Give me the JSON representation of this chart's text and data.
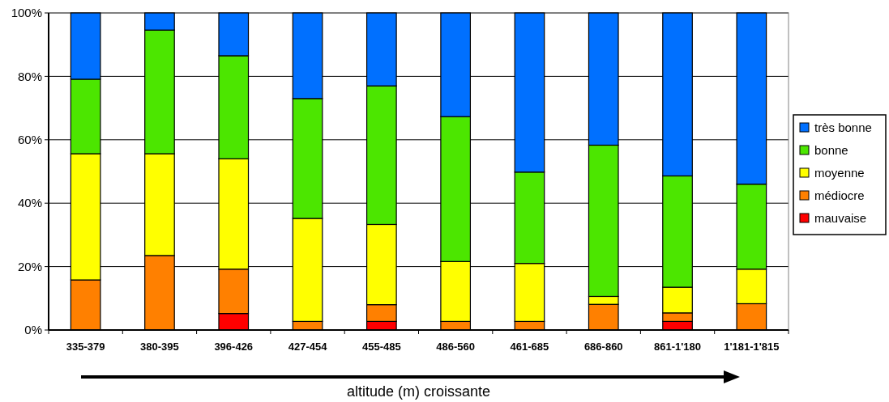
{
  "chart_data": {
    "type": "bar",
    "stacked": true,
    "xlabel": "altitude (m) croissante",
    "categories": [
      "335-379",
      "380-395",
      "396-426",
      "427-454",
      "455-485",
      "486-560",
      "461-685",
      "686-860",
      "861-1'180",
      "1'181-1'815"
    ],
    "series": [
      {
        "name": "mauvaise",
        "color": "#ff0000",
        "values": [
          0,
          0,
          5.2,
          0,
          2.7,
          0,
          0,
          0,
          2.7,
          0
        ]
      },
      {
        "name": "médiocre",
        "color": "#ff8000",
        "values": [
          15.8,
          23.5,
          14,
          2.7,
          5.3,
          2.7,
          2.7,
          8.1,
          2.7,
          8.3
        ]
      },
      {
        "name": "moyenne",
        "color": "#ffff00",
        "values": [
          39.8,
          32.1,
          34.8,
          32.5,
          25.3,
          18.9,
          18.3,
          2.5,
          8.1,
          10.9
        ]
      },
      {
        "name": "bonne",
        "color": "#4ce600",
        "values": [
          23.5,
          39,
          32.5,
          37.8,
          43.7,
          45.7,
          28.8,
          47.7,
          35.1,
          26.8
        ]
      },
      {
        "name": "très bonne",
        "color": "#0070ff",
        "values": [
          20.9,
          5.4,
          13.5,
          27,
          23,
          32.7,
          50.2,
          41.7,
          51.4,
          54
        ]
      }
    ],
    "ylim": [
      0,
      100
    ],
    "yticks": [
      {
        "value": 0,
        "label": "0%"
      },
      {
        "value": 20,
        "label": "20%"
      },
      {
        "value": 40,
        "label": "40%"
      },
      {
        "value": 60,
        "label": "60%"
      },
      {
        "value": 80,
        "label": "80%"
      },
      {
        "value": 100,
        "label": "100%"
      }
    ],
    "grid": "y",
    "legend": "right"
  }
}
